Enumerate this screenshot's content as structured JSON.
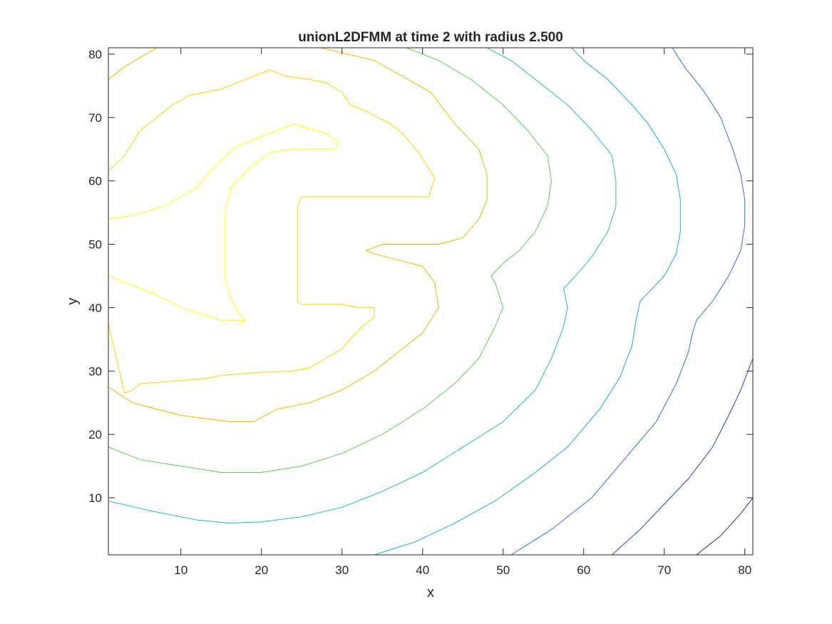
{
  "chart_data": {
    "type": "contour",
    "title": "unionL2DFMM at time 2 with radius 2.500",
    "xlabel": "x",
    "ylabel": "y",
    "xlim": [
      1,
      81
    ],
    "ylim": [
      1,
      81
    ],
    "xticks": [
      10,
      20,
      30,
      40,
      50,
      60,
      70,
      80
    ],
    "yticks": [
      10,
      20,
      30,
      40,
      50,
      60,
      70,
      80
    ],
    "box": true,
    "grid": false,
    "contours": [
      {
        "color": "#ffff00",
        "points": [
          [
            17,
            37.3
          ],
          [
            18,
            38
          ],
          [
            15,
            38
          ],
          [
            10,
            40
          ],
          [
            7,
            42
          ],
          [
            3,
            44
          ],
          [
            1,
            45
          ]
        ]
      },
      {
        "color": "#ffff00",
        "points": [
          [
            1,
            54
          ],
          [
            4,
            54.5
          ],
          [
            8,
            56
          ],
          [
            12,
            59
          ],
          [
            14,
            62
          ],
          [
            17,
            65.5
          ],
          [
            20,
            67
          ],
          [
            24,
            69
          ],
          [
            28,
            67.5
          ],
          [
            29.5,
            66.2
          ],
          [
            29.2,
            65
          ],
          [
            24,
            65
          ],
          [
            21.2,
            64.5
          ],
          [
            18.5,
            62
          ],
          [
            16.2,
            59
          ],
          [
            15.5,
            55
          ],
          [
            15.5,
            48
          ],
          [
            15.5,
            45
          ],
          [
            16,
            42
          ],
          [
            17,
            39.5
          ],
          [
            18,
            38
          ]
        ]
      },
      {
        "color": "#f3d500",
        "points": [
          [
            1,
            61.5
          ],
          [
            3,
            64
          ],
          [
            4,
            66
          ],
          [
            5,
            68
          ],
          [
            6,
            69
          ],
          [
            7.5,
            70.5
          ],
          [
            9,
            72
          ],
          [
            11,
            73.5
          ],
          [
            15,
            74.5
          ],
          [
            19,
            76.5
          ],
          [
            21,
            77.5
          ],
          [
            23,
            76.5
          ],
          [
            26,
            76
          ],
          [
            28,
            75.5
          ],
          [
            30,
            74
          ],
          [
            31,
            72
          ],
          [
            33,
            71
          ],
          [
            36,
            69
          ],
          [
            37.5,
            67.5
          ],
          [
            38.5,
            66
          ],
          [
            39.5,
            64.5
          ],
          [
            40.5,
            62.5
          ],
          [
            41.5,
            60.5
          ],
          [
            40.8,
            57.5
          ],
          [
            33,
            57.5
          ],
          [
            25,
            57.5
          ],
          [
            24.5,
            56
          ],
          [
            24.5,
            48
          ],
          [
            24.5,
            41
          ],
          [
            25,
            40.5
          ],
          [
            30,
            40.5
          ],
          [
            32,
            40
          ],
          [
            34,
            40
          ],
          [
            34,
            38.5
          ],
          [
            32.5,
            37
          ],
          [
            31,
            35
          ],
          [
            30,
            33.5
          ],
          [
            28,
            32
          ],
          [
            26,
            30.5
          ],
          [
            24,
            30
          ],
          [
            20,
            29.8
          ],
          [
            17,
            29.5
          ],
          [
            15,
            29.3
          ],
          [
            13,
            28.8
          ],
          [
            10,
            28.5
          ],
          [
            7,
            28.2
          ],
          [
            5,
            28
          ],
          [
            4,
            27
          ],
          [
            3,
            26.5
          ],
          [
            1,
            37.5
          ]
        ]
      },
      {
        "color": "#e6b800",
        "points": [
          [
            1,
            76
          ],
          [
            3,
            78
          ],
          [
            5,
            79.5
          ],
          [
            7,
            81
          ],
          [
            13,
            83
          ],
          [
            24,
            82
          ],
          [
            34,
            79
          ],
          [
            41,
            74
          ],
          [
            44,
            69
          ],
          [
            47,
            65
          ],
          [
            48,
            61
          ],
          [
            48,
            57
          ],
          [
            47,
            54
          ],
          [
            45,
            51
          ],
          [
            42,
            50
          ],
          [
            35,
            50
          ],
          [
            33,
            49
          ],
          [
            34,
            48.5
          ],
          [
            37,
            47.5
          ],
          [
            40,
            46.5
          ],
          [
            41.5,
            44
          ],
          [
            42,
            40
          ],
          [
            40,
            36
          ],
          [
            37,
            33
          ],
          [
            34,
            30
          ],
          [
            30,
            27
          ],
          [
            26,
            25
          ],
          [
            22,
            24
          ],
          [
            19,
            22
          ],
          [
            16,
            22
          ],
          [
            13,
            22.5
          ],
          [
            10,
            23
          ],
          [
            7,
            24
          ],
          [
            4,
            25
          ],
          [
            1,
            27.5
          ]
        ]
      },
      {
        "color": "#5ec962",
        "points": [
          [
            1,
            18
          ],
          [
            5,
            16
          ],
          [
            10,
            15
          ],
          [
            15,
            14
          ],
          [
            20,
            14
          ],
          [
            25,
            15
          ],
          [
            30,
            17
          ],
          [
            35,
            20
          ],
          [
            40,
            24
          ],
          [
            44,
            28
          ],
          [
            47,
            32
          ],
          [
            49,
            37
          ],
          [
            50,
            40
          ],
          [
            49.5,
            42
          ],
          [
            49,
            44
          ],
          [
            48.5,
            45
          ],
          [
            50,
            47
          ],
          [
            52,
            49
          ],
          [
            54,
            52
          ],
          [
            55.5,
            56
          ],
          [
            56,
            60
          ],
          [
            55.5,
            64
          ],
          [
            53,
            68
          ],
          [
            50,
            72
          ],
          [
            46,
            76
          ],
          [
            42,
            79
          ],
          [
            38,
            81
          ]
        ]
      },
      {
        "color": "#21bcbc",
        "points": [
          [
            1,
            9.5
          ],
          [
            6,
            8
          ],
          [
            12,
            6.5
          ],
          [
            16,
            6
          ],
          [
            20,
            6.2
          ],
          [
            25,
            7
          ],
          [
            30,
            8.5
          ],
          [
            35,
            11
          ],
          [
            40,
            14
          ],
          [
            45,
            18
          ],
          [
            50,
            22
          ],
          [
            54,
            27
          ],
          [
            56,
            32
          ],
          [
            57.5,
            37
          ],
          [
            58,
            40
          ],
          [
            57.5,
            43
          ],
          [
            59,
            45
          ],
          [
            61,
            48
          ],
          [
            63,
            52
          ],
          [
            64,
            56
          ],
          [
            64,
            60
          ],
          [
            63.5,
            64
          ],
          [
            61,
            68
          ],
          [
            58,
            72
          ],
          [
            54,
            76
          ],
          [
            51,
            79
          ],
          [
            48,
            81
          ]
        ]
      },
      {
        "color": "#1aa6e0",
        "points": [
          [
            34,
            1
          ],
          [
            39,
            3
          ],
          [
            44,
            6
          ],
          [
            49,
            9.5
          ],
          [
            54,
            14
          ],
          [
            58,
            18
          ],
          [
            62,
            24
          ],
          [
            64.5,
            29
          ],
          [
            66,
            34
          ],
          [
            66.5,
            38
          ],
          [
            67,
            41
          ],
          [
            68.5,
            43
          ],
          [
            70,
            45
          ],
          [
            71.5,
            48.5
          ],
          [
            72,
            52
          ],
          [
            72,
            57
          ],
          [
            71.5,
            61
          ],
          [
            70,
            65
          ],
          [
            68,
            69
          ],
          [
            66,
            72
          ],
          [
            63,
            76
          ],
          [
            60,
            79
          ],
          [
            58.5,
            81
          ]
        ]
      },
      {
        "color": "#2f6fe0",
        "points": [
          [
            51,
            1
          ],
          [
            56,
            5
          ],
          [
            61,
            10
          ],
          [
            65,
            16
          ],
          [
            69,
            22
          ],
          [
            71.5,
            28
          ],
          [
            73,
            33
          ],
          [
            73.5,
            36
          ],
          [
            74,
            38
          ],
          [
            76,
            41
          ],
          [
            78,
            45
          ],
          [
            79.5,
            49
          ],
          [
            80,
            53
          ],
          [
            80,
            57
          ],
          [
            79.5,
            61
          ],
          [
            78.5,
            65
          ],
          [
            77,
            70
          ],
          [
            75,
            74
          ],
          [
            72.5,
            78
          ],
          [
            71,
            81
          ]
        ]
      },
      {
        "color": "#2e3ec2",
        "points": [
          [
            63.5,
            1
          ],
          [
            67,
            5
          ],
          [
            70,
            9
          ],
          [
            73,
            13
          ],
          [
            76,
            18
          ],
          [
            78,
            23
          ],
          [
            79.5,
            27
          ],
          [
            81,
            32
          ]
        ]
      },
      {
        "color": "#3a1e8c",
        "points": [
          [
            74,
            1
          ],
          [
            77,
            4
          ],
          [
            79.5,
            7.5
          ],
          [
            81,
            10
          ]
        ]
      }
    ]
  }
}
